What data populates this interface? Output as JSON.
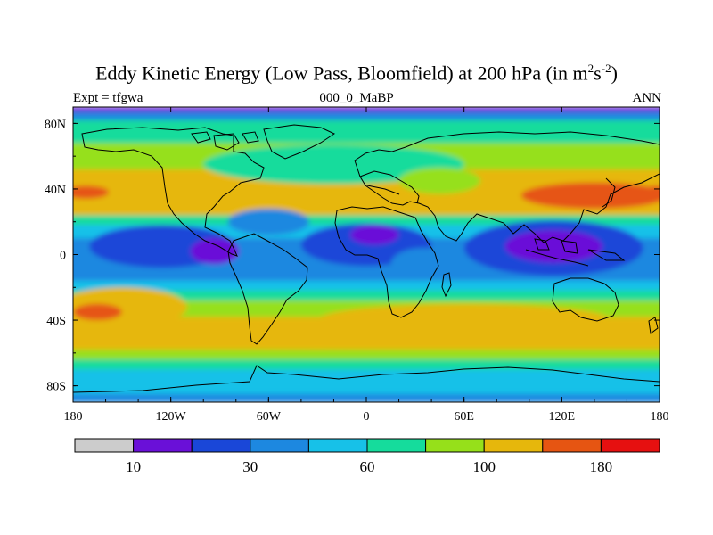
{
  "title": {
    "main": "Eddy Kinetic Energy (Low Pass, Bloomfield) at 200 hPa (in m",
    "sup1": "2",
    "mid": "s",
    "sup2": "-2",
    "end": ")"
  },
  "left_label": "Expt = tfgwa",
  "center_label": "000_0_MaBP",
  "right_label": "ANN",
  "chart_data": {
    "type": "heatmap",
    "projection": "cylindrical equidistant",
    "variable": "Eddy Kinetic Energy (low pass, Bloomfield) at 200 hPa",
    "units": "m^2 s^-2",
    "xlim": [
      -180,
      180
    ],
    "ylim": [
      -90,
      90
    ],
    "x_ticks": [
      {
        "value": -180,
        "label": "180"
      },
      {
        "value": -120,
        "label": "120W"
      },
      {
        "value": -60,
        "label": "60W"
      },
      {
        "value": 0,
        "label": "0"
      },
      {
        "value": 60,
        "label": "60E"
      },
      {
        "value": 120,
        "label": "120E"
      },
      {
        "value": 180,
        "label": "180"
      }
    ],
    "y_ticks": [
      {
        "value": 80,
        "label": "80N"
      },
      {
        "value": 40,
        "label": "40N"
      },
      {
        "value": 0,
        "label": "0"
      },
      {
        "value": -40,
        "label": "40S"
      },
      {
        "value": -80,
        "label": "80S"
      }
    ],
    "colorbar": {
      "colors": [
        "#cccccc",
        "#6a10d8",
        "#1a47d8",
        "#1d88e0",
        "#17c1e8",
        "#15dc9c",
        "#96e01a",
        "#e6b70c",
        "#e65512",
        "#e61010"
      ],
      "levels": [
        10,
        20,
        30,
        45,
        60,
        80,
        100,
        140,
        180
      ],
      "labels": [
        {
          "after_box": 1,
          "text": "10"
        },
        {
          "after_box": 3,
          "text": "30"
        },
        {
          "after_box": 5,
          "text": "60"
        },
        {
          "after_box": 7,
          "text": "100"
        },
        {
          "after_box": 9,
          "text": "180"
        }
      ]
    },
    "zonal_bands": [
      {
        "lat": 90,
        "value": 15
      },
      {
        "lat": 87,
        "value": 40
      },
      {
        "lat": 82,
        "value": 62
      },
      {
        "lat": 74,
        "value": 65
      },
      {
        "lat": 68,
        "value": 85
      },
      {
        "lat": 60,
        "value": 95
      },
      {
        "lat": 52,
        "value": 105
      },
      {
        "lat": 40,
        "value": 110
      },
      {
        "lat": 30,
        "value": 100
      },
      {
        "lat": 24,
        "value": 72
      },
      {
        "lat": 18,
        "value": 52
      },
      {
        "lat": 10,
        "value": 40
      },
      {
        "lat": 0,
        "value": 32
      },
      {
        "lat": -10,
        "value": 38
      },
      {
        "lat": -16,
        "value": 50
      },
      {
        "lat": -22,
        "value": 72
      },
      {
        "lat": -28,
        "value": 95
      },
      {
        "lat": -38,
        "value": 118
      },
      {
        "lat": -50,
        "value": 115
      },
      {
        "lat": -58,
        "value": 98
      },
      {
        "lat": -64,
        "value": 78
      },
      {
        "lat": -70,
        "value": 58
      },
      {
        "lat": -78,
        "value": 45
      },
      {
        "lat": -85,
        "value": 38
      },
      {
        "lat": -90,
        "value": 30
      }
    ],
    "features": [
      {
        "lon": -125,
        "lat": 5,
        "rx": 45,
        "ry": 13,
        "value": 25
      },
      {
        "lon": -93,
        "lat": 2,
        "rx": 15,
        "ry": 8,
        "value": 14
      },
      {
        "lon": 0,
        "lat": 6,
        "rx": 40,
        "ry": 13,
        "value": 25
      },
      {
        "lon": 5,
        "lat": 12,
        "rx": 15,
        "ry": 6,
        "value": 14
      },
      {
        "lon": 115,
        "lat": 4,
        "rx": 55,
        "ry": 17,
        "value": 25
      },
      {
        "lon": 115,
        "lat": 5,
        "rx": 30,
        "ry": 10,
        "value": 14
      },
      {
        "lon": 35,
        "lat": -6,
        "rx": 20,
        "ry": 10,
        "value": 30
      },
      {
        "lon": -20,
        "lat": 55,
        "rx": 80,
        "ry": 12,
        "value": 72
      },
      {
        "lon": 45,
        "lat": 45,
        "rx": 25,
        "ry": 8,
        "value": 88
      },
      {
        "lon": 140,
        "lat": 36,
        "rx": 45,
        "ry": 8,
        "value": 145
      },
      {
        "lon": -172,
        "lat": 38,
        "rx": 14,
        "ry": 4,
        "value": 160
      },
      {
        "lon": 178,
        "lat": 38,
        "rx": 8,
        "ry": 4,
        "value": 160
      },
      {
        "lon": -150,
        "lat": -32,
        "rx": 40,
        "ry": 12,
        "value": 118
      },
      {
        "lon": -165,
        "lat": -35,
        "rx": 15,
        "ry": 5,
        "value": 150
      },
      {
        "lon": 60,
        "lat": -40,
        "rx": 90,
        "ry": 10,
        "value": 118
      },
      {
        "lon": -60,
        "lat": 20,
        "rx": 25,
        "ry": 8,
        "value": 40
      },
      {
        "lon": -30,
        "lat": -50,
        "rx": 40,
        "ry": 8,
        "value": 118
      }
    ]
  }
}
